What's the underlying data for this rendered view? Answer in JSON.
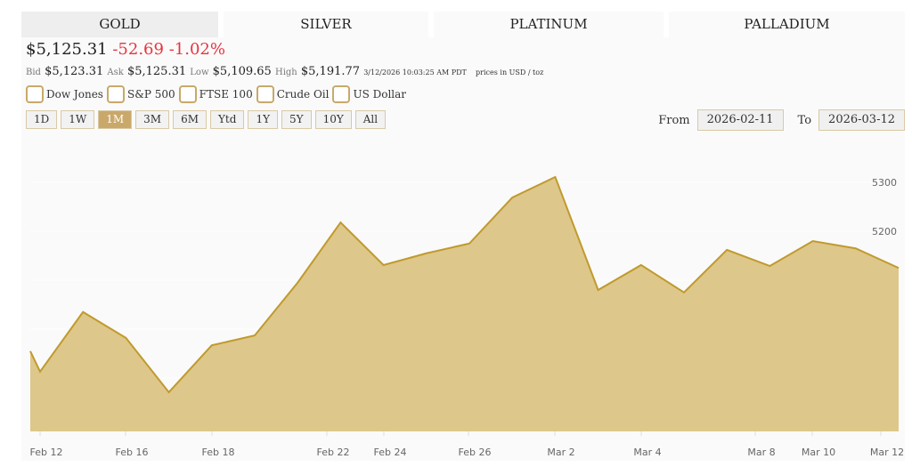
{
  "tabs": [
    {
      "label": "GOLD",
      "active": true
    },
    {
      "label": "SILVER"
    },
    {
      "label": "PLATINUM"
    },
    {
      "label": "PALLADIUM"
    }
  ],
  "quote": {
    "price": "$5,125.31",
    "change": "-52.69",
    "change_pct": "-1.02%",
    "bid_label": "Bid",
    "bid": "$5,123.31",
    "ask_label": "Ask",
    "ask": "$5,125.31",
    "low_label": "Low",
    "low": "$5,109.65",
    "high_label": "High",
    "high": "$5,191.77",
    "timestamp": "3/12/2026 10:03:25 AM PDT",
    "unit": "prices in USD / toz"
  },
  "compare": [
    {
      "label": "Dow Jones"
    },
    {
      "label": "S&P 500"
    },
    {
      "label": "FTSE 100"
    },
    {
      "label": "Crude Oil"
    },
    {
      "label": "US Dollar"
    }
  ],
  "ranges": [
    "1D",
    "1W",
    "1M",
    "3M",
    "6M",
    "Ytd",
    "1Y",
    "5Y",
    "10Y",
    "All"
  ],
  "active_range": "1M",
  "date_range": {
    "from_label": "From",
    "from": "2026-02-11",
    "to_label": "To",
    "to": "2026-03-12"
  },
  "colors": {
    "fill": "#dec78a",
    "line": "#c09a2e",
    "negative": "#e8343f",
    "active": "#c9a86a"
  },
  "chart_data": {
    "type": "area",
    "x": [
      "2026-02-11",
      "2026-02-12",
      "2026-02-13",
      "2026-02-16",
      "2026-02-17",
      "2026-02-18",
      "2026-02-19",
      "2026-02-20",
      "2026-02-23",
      "2026-02-24",
      "2026-02-25",
      "2026-02-26",
      "2026-02-27",
      "2026-03-02",
      "2026-03-03",
      "2026-03-04",
      "2026-03-05",
      "2026-03-06",
      "2026-03-09",
      "2026-03-10",
      "2026-03-11",
      "2026-03-12"
    ],
    "values": [
      4955,
      4913,
      5035,
      4982,
      4871,
      4967,
      4987,
      5095,
      5218,
      5131,
      5155,
      5175,
      5269,
      5311,
      5080,
      5131,
      5075,
      5162,
      5129,
      5180,
      5165,
      5125
    ],
    "x_ticks": [
      "Feb 12",
      "Feb 16",
      "Feb 18",
      "Feb 22",
      "Feb 24",
      "Feb 26",
      "Mar 2",
      "Mar 4",
      "Mar 8",
      "Mar 10",
      "Mar 12"
    ],
    "y_ticks": [
      4800,
      4900,
      5000,
      5100,
      5200,
      5300
    ],
    "ylim": [
      4790,
      5340
    ],
    "ylabel_position": "right",
    "grid": true
  }
}
